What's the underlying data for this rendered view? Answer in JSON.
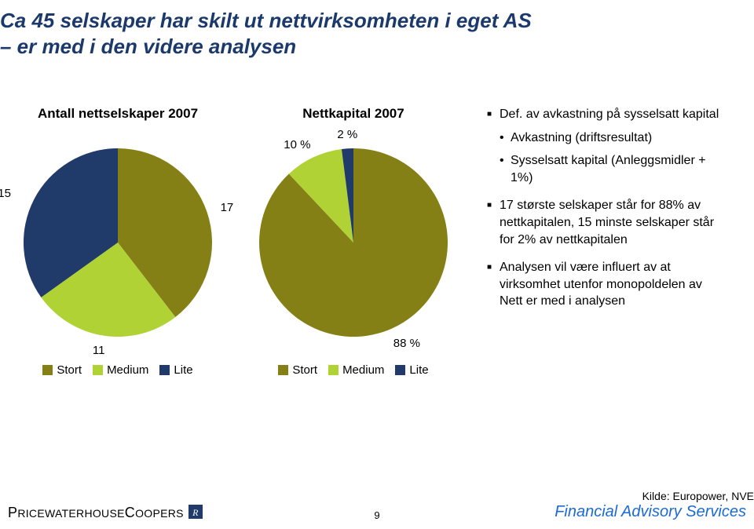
{
  "title_line1": "Ca 45 selskaper har skilt ut nettvirksomheten i eget AS",
  "title_line2": "– er med i den videre analysen",
  "chart1": {
    "type": "pie",
    "title": "Antall nettselskaper 2007",
    "slices": [
      {
        "key": "Stort",
        "value": 17,
        "label": "17",
        "color": "#848015"
      },
      {
        "key": "Medium",
        "value": 11,
        "label": "11",
        "color": "#b0d235"
      },
      {
        "key": "Lite",
        "value": 15,
        "label": "15",
        "color": "#203a6a"
      }
    ],
    "start_angle_deg": 0,
    "radius": 120,
    "background_color": "#ffffff",
    "label_fontsize": 15
  },
  "chart2": {
    "type": "pie",
    "title": "Nettkapital 2007",
    "slices": [
      {
        "key": "Stort",
        "value": 88,
        "label": "88 %",
        "color": "#848015"
      },
      {
        "key": "Medium",
        "value": 10,
        "label": "10 %",
        "color": "#b0d235"
      },
      {
        "key": "Lite",
        "value": 2,
        "label": "2 %",
        "color": "#203a6a"
      }
    ],
    "start_angle_deg": 0,
    "radius": 120,
    "background_color": "#ffffff",
    "label_fontsize": 15
  },
  "legend": {
    "items": [
      "Stort",
      "Medium",
      "Lite"
    ]
  },
  "bullets": {
    "b1_1": "Def. av avkastning på sysselsatt kapital",
    "b2_1": "Avkastning (driftsresultat)",
    "b2_2": "Sysselsatt kapital (Anleggsmidler + 1%)",
    "b1_2": "17 største selskaper står for 88% av nettkapitalen, 15 minste selskaper står for 2% av nettkapitalen",
    "b1_3": "Analysen vil være influert av at virksomhet utenfor monopoldelen av Nett er med i analysen"
  },
  "source": "Kilde: Europower, NVE",
  "page_number": "9",
  "brand": "PRICEWATERHOUSECOOPERS",
  "service_line": "Financial Advisory Services",
  "colors": {
    "title": "#1b3a6b",
    "fas": "#1b6ad6"
  }
}
